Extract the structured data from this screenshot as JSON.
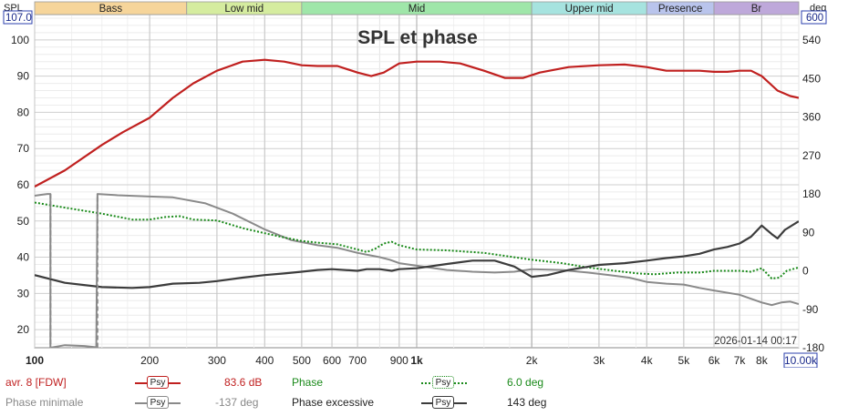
{
  "chart_data": {
    "type": "line",
    "title": "SPL et phase",
    "left_axis_label": "SPL",
    "right_axis_label": "deg",
    "left_axis_top_value": "107.0",
    "right_axis_top_value": "600",
    "x_top_readout": "10.00k",
    "x_scale": "log",
    "xlim": [
      100,
      10000
    ],
    "ylim_left": [
      15,
      107
    ],
    "ylim_right": [
      -180,
      600
    ],
    "left_ticks": [
      20,
      30,
      40,
      50,
      60,
      70,
      80,
      90,
      100
    ],
    "right_ticks": [
      -180,
      -90,
      0,
      90,
      180,
      270,
      360,
      450,
      540
    ],
    "x_ticks": [
      {
        "v": 100,
        "label": "100"
      },
      {
        "v": 200,
        "label": "200"
      },
      {
        "v": 300,
        "label": "300"
      },
      {
        "v": 400,
        "label": "400"
      },
      {
        "v": 500,
        "label": "500"
      },
      {
        "v": 600,
        "label": "600"
      },
      {
        "v": 700,
        "label": "700"
      },
      {
        "v": 900,
        "label": "900"
      },
      {
        "v": 1000,
        "label": "1k"
      },
      {
        "v": 2000,
        "label": "2k"
      },
      {
        "v": 3000,
        "label": "3k"
      },
      {
        "v": 4000,
        "label": "4k"
      },
      {
        "v": 5000,
        "label": "5k"
      },
      {
        "v": 6000,
        "label": "6k"
      },
      {
        "v": 7000,
        "label": "7k"
      },
      {
        "v": 8000,
        "label": "8k"
      }
    ],
    "bands": [
      {
        "name": "Bass",
        "from": 100,
        "to": 250,
        "color": "#f6d59a"
      },
      {
        "name": "Low mid",
        "from": 250,
        "to": 500,
        "color": "#d5ec9f"
      },
      {
        "name": "Mid",
        "from": 500,
        "to": 2000,
        "color": "#9fe6a9"
      },
      {
        "name": "Upper mid",
        "from": 2000,
        "to": 4000,
        "color": "#a6e3df"
      },
      {
        "name": "Presence",
        "from": 4000,
        "to": 6000,
        "color": "#b9c4ec"
      },
      {
        "name": "Br",
        "from": 6000,
        "to": 10000,
        "color": "#bea8da"
      }
    ],
    "timestamp": "2026-01-14 00:17",
    "series": [
      {
        "name": "avr. 8 [FDW]",
        "axis": "left",
        "color": "#c0201f",
        "dash": "",
        "width": 2.2,
        "points": [
          [
            100,
            59.5
          ],
          [
            120,
            64
          ],
          [
            150,
            71
          ],
          [
            170,
            74.5
          ],
          [
            200,
            78.5
          ],
          [
            230,
            84
          ],
          [
            260,
            88
          ],
          [
            300,
            91.5
          ],
          [
            350,
            94
          ],
          [
            400,
            94.5
          ],
          [
            450,
            94
          ],
          [
            500,
            93
          ],
          [
            550,
            92.8
          ],
          [
            620,
            92.8
          ],
          [
            700,
            91
          ],
          [
            760,
            90
          ],
          [
            820,
            91
          ],
          [
            900,
            93.5
          ],
          [
            1000,
            94
          ],
          [
            1150,
            94
          ],
          [
            1300,
            93.5
          ],
          [
            1500,
            91.5
          ],
          [
            1700,
            89.5
          ],
          [
            1900,
            89.5
          ],
          [
            2100,
            91
          ],
          [
            2500,
            92.5
          ],
          [
            3000,
            93
          ],
          [
            3500,
            93.2
          ],
          [
            4000,
            92.5
          ],
          [
            4500,
            91.5
          ],
          [
            5000,
            91.5
          ],
          [
            5500,
            91.5
          ],
          [
            6000,
            91.2
          ],
          [
            6500,
            91.2
          ],
          [
            7000,
            91.5
          ],
          [
            7500,
            91.5
          ],
          [
            8000,
            90
          ],
          [
            8800,
            86
          ],
          [
            9500,
            84.5
          ],
          [
            10000,
            84
          ]
        ]
      },
      {
        "name": "Phase minimale",
        "axis": "right",
        "color": "#8a8a8a",
        "dash": "",
        "width": 2,
        "points": [
          [
            100,
            176
          ],
          [
            104,
            178
          ],
          [
            108,
            180
          ],
          [
            110,
            180
          ],
          [
            110,
            -180
          ],
          [
            120,
            -174
          ],
          [
            135,
            -176
          ],
          [
            145,
            -179
          ],
          [
            146,
            180
          ],
          [
            165,
            177
          ],
          [
            200,
            174
          ],
          [
            230,
            172
          ],
          [
            280,
            158
          ],
          [
            330,
            134
          ],
          [
            400,
            97
          ],
          [
            470,
            72
          ],
          [
            550,
            60
          ],
          [
            620,
            54
          ],
          [
            700,
            42
          ],
          [
            800,
            32
          ],
          [
            850,
            26
          ],
          [
            900,
            18
          ],
          [
            1000,
            12
          ],
          [
            1200,
            2
          ],
          [
            1400,
            -2
          ],
          [
            1600,
            -4
          ],
          [
            1800,
            -2
          ],
          [
            2000,
            4
          ],
          [
            2400,
            2
          ],
          [
            2800,
            -4
          ],
          [
            3200,
            -10
          ],
          [
            3600,
            -16
          ],
          [
            4000,
            -26
          ],
          [
            4500,
            -30
          ],
          [
            5000,
            -32
          ],
          [
            5500,
            -40
          ],
          [
            6000,
            -46
          ],
          [
            7000,
            -56
          ],
          [
            8000,
            -74
          ],
          [
            8500,
            -80
          ],
          [
            9000,
            -74
          ],
          [
            9500,
            -72
          ],
          [
            10000,
            -78
          ]
        ]
      },
      {
        "name": "Phase",
        "axis": "right",
        "color": "#1a8a1a",
        "dash": "2,2",
        "width": 2,
        "points": [
          [
            100,
            160
          ],
          [
            120,
            148
          ],
          [
            150,
            134
          ],
          [
            180,
            120
          ],
          [
            200,
            120
          ],
          [
            220,
            126
          ],
          [
            240,
            128
          ],
          [
            260,
            120
          ],
          [
            300,
            118
          ],
          [
            350,
            100
          ],
          [
            400,
            88
          ],
          [
            450,
            78
          ],
          [
            500,
            70
          ],
          [
            550,
            66
          ],
          [
            620,
            62
          ],
          [
            700,
            50
          ],
          [
            740,
            44
          ],
          [
            780,
            52
          ],
          [
            820,
            64
          ],
          [
            860,
            68
          ],
          [
            900,
            60
          ],
          [
            1000,
            50
          ],
          [
            1200,
            48
          ],
          [
            1500,
            42
          ],
          [
            2000,
            26
          ],
          [
            2400,
            18
          ],
          [
            2800,
            8
          ],
          [
            3300,
            0
          ],
          [
            3800,
            -6
          ],
          [
            4200,
            -8
          ],
          [
            4800,
            -4
          ],
          [
            5500,
            -4
          ],
          [
            6000,
            0
          ],
          [
            6500,
            0
          ],
          [
            7000,
            0
          ],
          [
            7500,
            -2
          ],
          [
            8000,
            6
          ],
          [
            8500,
            -18
          ],
          [
            8900,
            -16
          ],
          [
            9300,
            0
          ],
          [
            10000,
            8
          ]
        ]
      },
      {
        "name": "Phase excessive",
        "axis": "right",
        "color": "#3c3c3c",
        "dash": "",
        "width": 2.2,
        "points": [
          [
            100,
            -10
          ],
          [
            120,
            -28
          ],
          [
            150,
            -38
          ],
          [
            180,
            -40
          ],
          [
            200,
            -38
          ],
          [
            230,
            -30
          ],
          [
            270,
            -28
          ],
          [
            300,
            -24
          ],
          [
            350,
            -16
          ],
          [
            400,
            -10
          ],
          [
            450,
            -6
          ],
          [
            500,
            -2
          ],
          [
            550,
            2
          ],
          [
            600,
            4
          ],
          [
            700,
            0
          ],
          [
            740,
            4
          ],
          [
            800,
            4
          ],
          [
            860,
            0
          ],
          [
            900,
            4
          ],
          [
            1000,
            6
          ],
          [
            1200,
            16
          ],
          [
            1400,
            24
          ],
          [
            1600,
            24
          ],
          [
            1800,
            10
          ],
          [
            2000,
            -14
          ],
          [
            2200,
            -10
          ],
          [
            2500,
            2
          ],
          [
            3000,
            14
          ],
          [
            3500,
            18
          ],
          [
            4000,
            24
          ],
          [
            4500,
            30
          ],
          [
            5000,
            34
          ],
          [
            5500,
            40
          ],
          [
            6000,
            50
          ],
          [
            6500,
            56
          ],
          [
            7000,
            64
          ],
          [
            7500,
            80
          ],
          [
            8000,
            106
          ],
          [
            8500,
            86
          ],
          [
            8800,
            76
          ],
          [
            9200,
            96
          ],
          [
            10000,
            116
          ]
        ]
      }
    ]
  },
  "legend": {
    "row1": {
      "name1": "avr. 8 [FDW]",
      "psy1": "Psy",
      "value1": "83.6 dB",
      "name2": "Phase",
      "psy2": "Psy",
      "value2": "6.0 deg"
    },
    "row2": {
      "name1": "Phase minimale",
      "psy1": "Psy",
      "value1": "-137 deg",
      "name2": "Phase excessive",
      "psy2": "Psy",
      "value2": "143 deg"
    }
  }
}
